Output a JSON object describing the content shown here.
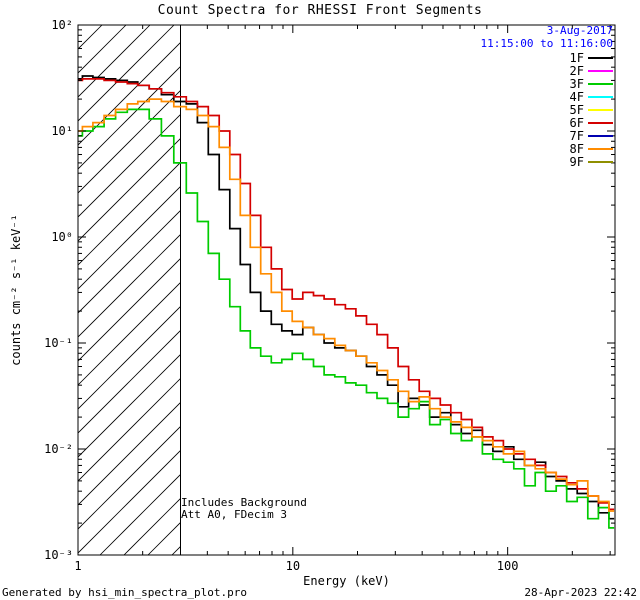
{
  "header": {
    "date": "3-Aug-2017",
    "time_range": "11:15:00 to 11:16:00"
  },
  "footer": {
    "left": "Generated by hsi_min_spectra_plot.pro",
    "right": "28-Apr-2023 22:42"
  },
  "colors": {
    "date_text": "#0000ff",
    "frame": "#000000",
    "background": "#ffffff"
  },
  "chart_data": {
    "type": "line",
    "title": "Count Spectra for RHESSI Front Segments",
    "xlabel": "Energy (keV)",
    "ylabel": "counts cm⁻² s⁻¹ keV⁻¹",
    "xscale": "log",
    "yscale": "log",
    "xlim": [
      1,
      316
    ],
    "ylim": [
      0.001,
      100
    ],
    "grid": false,
    "legend_position": "top-right-inside",
    "date": "3-Aug-2017",
    "time_range": "11:15:00 to 11:16:00",
    "annotations": [
      "Includes Background",
      "Att A0, FDecim 3"
    ],
    "hatch_region": {
      "x_from": 1,
      "x_to": 3
    },
    "x_ticks": [
      {
        "value": 1,
        "label": "1"
      },
      {
        "value": 10,
        "label": "10"
      },
      {
        "value": 100,
        "label": "100"
      }
    ],
    "y_ticks": [
      {
        "value": 0.001,
        "label": "10⁻³"
      },
      {
        "value": 0.01,
        "label": "10⁻²"
      },
      {
        "value": 0.1,
        "label": "10⁻¹"
      },
      {
        "value": 1,
        "label": "10⁰"
      },
      {
        "value": 10,
        "label": "10¹"
      },
      {
        "value": 100,
        "label": "10²"
      }
    ],
    "legend": [
      {
        "label": "1F",
        "color": "#000000"
      },
      {
        "label": "2F",
        "color": "#ff00ff"
      },
      {
        "label": "3F",
        "color": "#00cc00"
      },
      {
        "label": "4F",
        "color": "#00ffff"
      },
      {
        "label": "5F",
        "color": "#ffff00"
      },
      {
        "label": "6F",
        "color": "#d40000"
      },
      {
        "label": "7F",
        "color": "#0000b0"
      },
      {
        "label": "8F",
        "color": "#ff8c00"
      },
      {
        "label": "9F",
        "color": "#8f8f00"
      }
    ],
    "x": [
      1.0,
      1.1,
      1.25,
      1.4,
      1.6,
      1.8,
      2.0,
      2.3,
      2.6,
      3.0,
      3.4,
      3.8,
      4.3,
      4.8,
      5.4,
      6.0,
      6.7,
      7.5,
      8.4,
      9.4,
      10.5,
      11.8,
      13.2,
      14.8,
      16.6,
      18.6,
      20.8,
      23.3,
      26.1,
      29.2,
      32.7,
      36.6,
      41,
      45.9,
      51.4,
      57.5,
      64.4,
      72.1,
      80.7,
      90.4,
      101,
      113,
      127,
      142,
      159,
      178,
      199,
      223,
      250,
      280,
      313
    ],
    "series": [
      {
        "name": "1F",
        "color": "#000000",
        "values": [
          31,
          33,
          32,
          31,
          30,
          29,
          27,
          25,
          22,
          19,
          18,
          12,
          6.0,
          2.8,
          1.2,
          0.55,
          0.3,
          0.2,
          0.15,
          0.13,
          0.12,
          0.14,
          0.12,
          0.1,
          0.09,
          0.085,
          0.075,
          0.06,
          0.05,
          0.04,
          0.025,
          0.03,
          0.026,
          0.02,
          0.022,
          0.017,
          0.014,
          0.015,
          0.011,
          0.0095,
          0.0105,
          0.008,
          0.007,
          0.0075,
          0.0055,
          0.005,
          0.0042,
          0.0038,
          0.0032,
          0.0025,
          0.0022
        ]
      },
      {
        "name": "3F",
        "color": "#00cc00",
        "values": [
          9,
          10,
          11,
          13,
          15,
          16,
          16,
          13,
          9,
          5,
          2.6,
          1.4,
          0.7,
          0.4,
          0.22,
          0.13,
          0.09,
          0.075,
          0.065,
          0.07,
          0.08,
          0.07,
          0.06,
          0.05,
          0.048,
          0.042,
          0.04,
          0.034,
          0.03,
          0.027,
          0.02,
          0.024,
          0.028,
          0.017,
          0.019,
          0.014,
          0.012,
          0.013,
          0.009,
          0.008,
          0.0075,
          0.0065,
          0.0045,
          0.006,
          0.004,
          0.0045,
          0.0032,
          0.0035,
          0.0022,
          0.0028,
          0.0018
        ]
      },
      {
        "name": "6F",
        "color": "#d40000",
        "values": [
          30,
          31,
          31,
          30,
          29,
          28,
          27,
          25,
          23,
          21,
          19,
          17,
          14,
          10,
          6,
          3.2,
          1.6,
          0.8,
          0.5,
          0.32,
          0.26,
          0.3,
          0.28,
          0.26,
          0.23,
          0.21,
          0.18,
          0.15,
          0.12,
          0.09,
          0.06,
          0.045,
          0.035,
          0.03,
          0.026,
          0.022,
          0.019,
          0.016,
          0.013,
          0.012,
          0.01,
          0.009,
          0.008,
          0.007,
          0.006,
          0.0055,
          0.0048,
          0.0042,
          0.0036,
          0.0031,
          0.0027
        ]
      },
      {
        "name": "8F",
        "color": "#ff8c00",
        "values": [
          10,
          11,
          12,
          14,
          16,
          18,
          19,
          20,
          19,
          17,
          16,
          14,
          11,
          7,
          3.5,
          1.6,
          0.8,
          0.45,
          0.3,
          0.2,
          0.16,
          0.14,
          0.12,
          0.11,
          0.095,
          0.085,
          0.075,
          0.065,
          0.055,
          0.045,
          0.035,
          0.028,
          0.031,
          0.024,
          0.02,
          0.018,
          0.016,
          0.013,
          0.012,
          0.0105,
          0.009,
          0.0095,
          0.007,
          0.0065,
          0.006,
          0.0052,
          0.0046,
          0.005,
          0.0036,
          0.0032,
          0.0026
        ]
      }
    ]
  }
}
